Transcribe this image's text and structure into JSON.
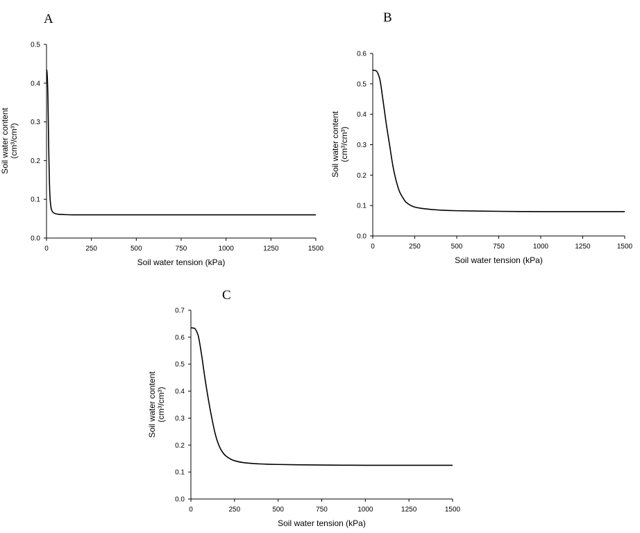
{
  "chart_data": [
    {
      "panel": "A",
      "type": "line",
      "xlabel": "Soil water tension (kPa)",
      "ylabel": [
        "Soil water content",
        "(cm³/cm³)"
      ],
      "xlim": [
        0,
        1500
      ],
      "ylim": [
        0,
        0.5
      ],
      "xticks": [
        "0",
        "250",
        "500",
        "750",
        "1000",
        "1250",
        "1500"
      ],
      "yticks": [
        "0.0",
        "0.1",
        "0.2",
        "0.3",
        "0.4",
        "0.5"
      ],
      "grid": false,
      "series": [
        {
          "x": [
            0,
            2,
            5,
            8,
            10,
            12,
            15,
            18,
            22,
            27,
            33,
            40,
            50,
            65,
            80,
            100,
            150,
            250,
            500,
            750,
            1000,
            1250,
            1500
          ],
          "y": [
            0.435,
            0.432,
            0.41,
            0.36,
            0.3,
            0.24,
            0.17,
            0.12,
            0.09,
            0.075,
            0.068,
            0.065,
            0.063,
            0.0615,
            0.061,
            0.0605,
            0.06,
            0.06,
            0.06,
            0.06,
            0.06,
            0.06,
            0.06
          ]
        }
      ]
    },
    {
      "panel": "B",
      "type": "line",
      "xlabel": "Soil water tension (kPa)",
      "ylabel": [
        "Soil water content",
        "(cm³/cm³)"
      ],
      "xlim": [
        0,
        1500
      ],
      "ylim": [
        0,
        0.6
      ],
      "xticks": [
        "0",
        "250",
        "500",
        "750",
        "1000",
        "1250",
        "1500"
      ],
      "yticks": [
        "0.0",
        "0.1",
        "0.2",
        "0.3",
        "0.4",
        "0.5",
        "0.6"
      ],
      "grid": false,
      "series": [
        {
          "x": [
            0,
            20,
            40,
            60,
            80,
            100,
            120,
            140,
            160,
            180,
            200,
            250,
            300,
            400,
            500,
            750,
            1000,
            1250,
            1500
          ],
          "y": [
            0.545,
            0.543,
            0.52,
            0.45,
            0.37,
            0.3,
            0.23,
            0.18,
            0.145,
            0.125,
            0.11,
            0.095,
            0.09,
            0.085,
            0.083,
            0.081,
            0.08,
            0.08,
            0.08
          ]
        }
      ]
    },
    {
      "panel": "C",
      "type": "line",
      "xlabel": "Soil water tension (kPa)",
      "ylabel": [
        "Soil water content",
        "(cm³/cm³)"
      ],
      "xlim": [
        0,
        1500
      ],
      "ylim": [
        0,
        0.7
      ],
      "xticks": [
        "0",
        "250",
        "500",
        "750",
        "1000",
        "1250",
        "1500"
      ],
      "yticks": [
        "0.0",
        "0.1",
        "0.2",
        "0.3",
        "0.4",
        "0.5",
        "0.6",
        "0.7"
      ],
      "grid": false,
      "series": [
        {
          "x": [
            0,
            20,
            40,
            60,
            80,
            100,
            120,
            140,
            160,
            180,
            200,
            250,
            300,
            400,
            500,
            750,
            1000,
            1250,
            1500
          ],
          "y": [
            0.635,
            0.633,
            0.61,
            0.54,
            0.45,
            0.37,
            0.3,
            0.24,
            0.2,
            0.175,
            0.16,
            0.142,
            0.135,
            0.13,
            0.128,
            0.126,
            0.125,
            0.125,
            0.125
          ]
        }
      ]
    }
  ]
}
